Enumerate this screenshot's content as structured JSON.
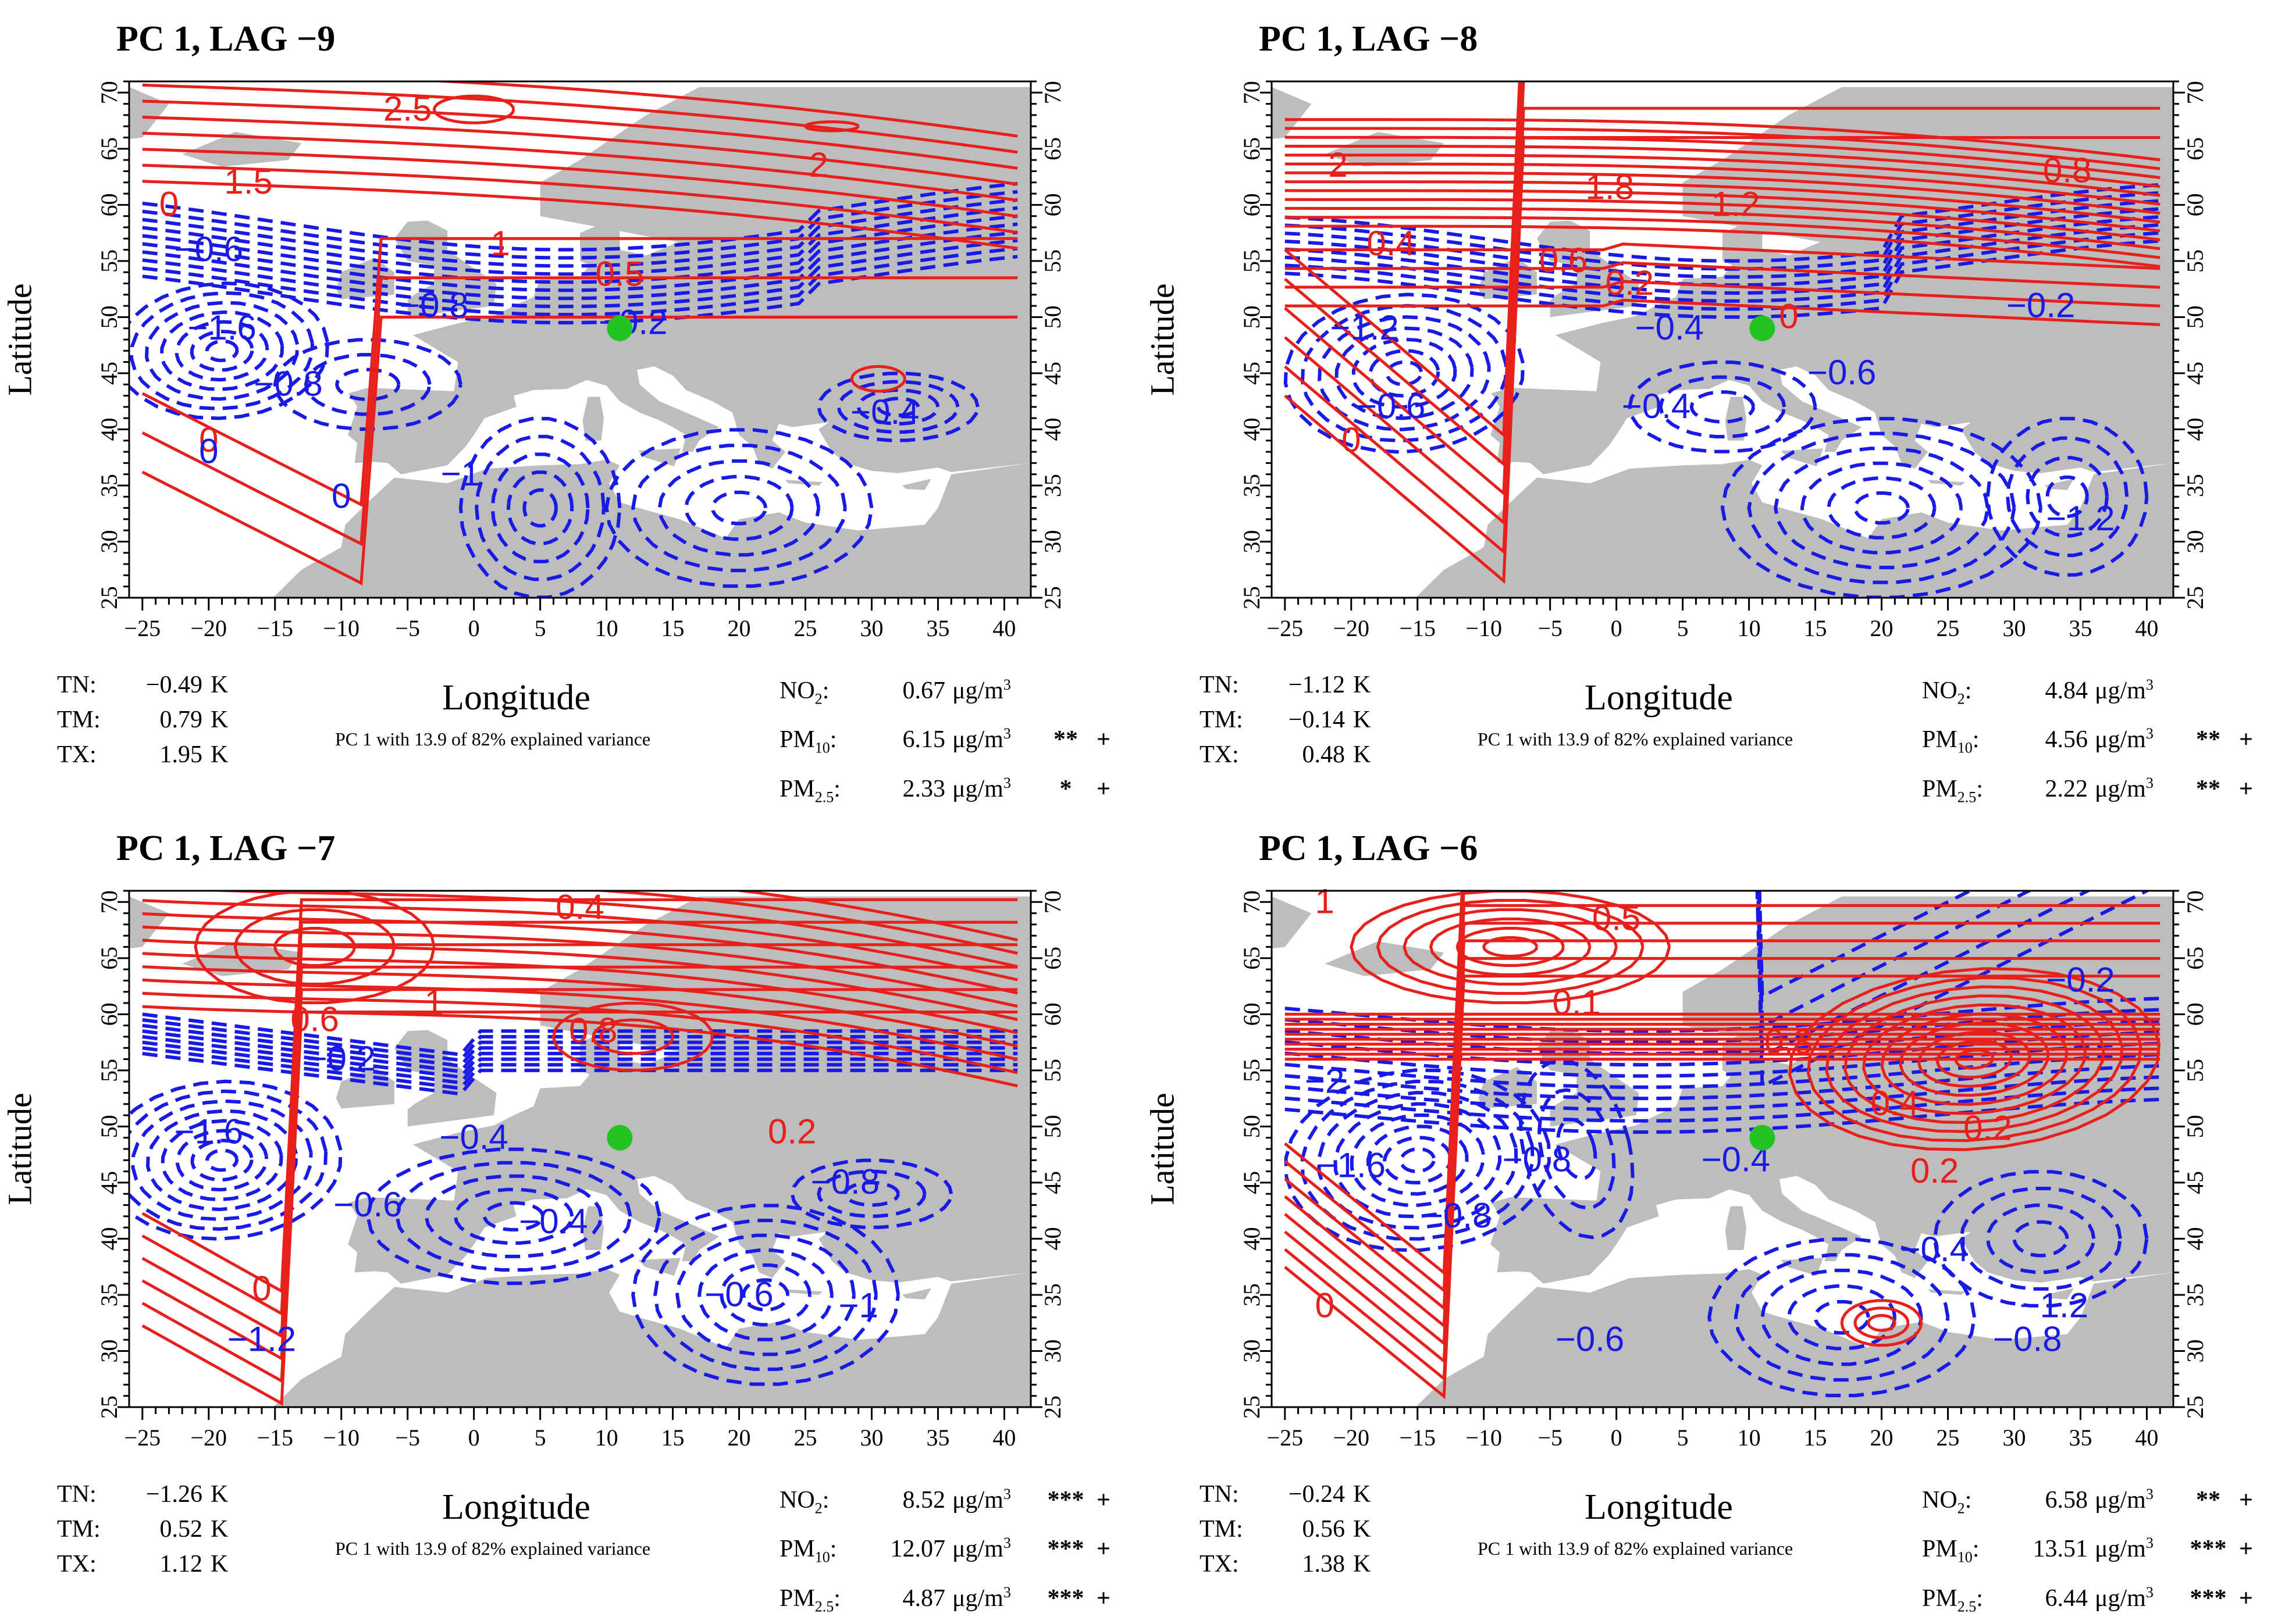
{
  "colors": {
    "positive": "#e8201c",
    "negative": "#1a1ae6",
    "land": "#bdbdbd",
    "sea": "#ffffff",
    "marker": "#22c322"
  },
  "x_axis_label": "Longitude",
  "y_axis_label": "Latitude",
  "subtitle": "PC 1 with 13.9 of 82% explained variance",
  "x_ticks": [
    "−25",
    "−20",
    "−15",
    "−10",
    "−5",
    "0",
    "5",
    "10",
    "15",
    "20",
    "25",
    "30",
    "35",
    "40"
  ],
  "y_ticks": [
    "25",
    "30",
    "35",
    "40",
    "45",
    "50",
    "55",
    "60",
    "65",
    "70"
  ],
  "unit_temp": "K",
  "unit_conc": "μg/m",
  "unit_conc_exp": "3",
  "temp_labels": [
    "TN:",
    "TM:",
    "TX:"
  ],
  "pollutants": [
    {
      "base": "NO",
      "sub": "2"
    },
    {
      "base": "PM",
      "sub": "10"
    },
    {
      "base": "PM",
      "sub": "2.5"
    }
  ],
  "chart_data": [
    {
      "type": "contour-map",
      "title": "PC 1, LAG −9",
      "xlim": [
        -25,
        40
      ],
      "ylim": [
        25,
        70
      ],
      "temps": [
        "−0.49",
        "0.79",
        "1.95"
      ],
      "conc": [
        "0.67",
        "6.15",
        "2.33"
      ],
      "sig": [
        "",
        "**",
        "*"
      ],
      "plus": [
        "",
        "+",
        "+"
      ],
      "pos_labels": [
        "2.5",
        "2",
        "1.5",
        "1",
        "0.5",
        "0",
        "0"
      ],
      "neg_labels": [
        "−0.6",
        "−1.6",
        "−0.8",
        "−0.8",
        "−0.2",
        "0",
        "−0.4",
        "−1",
        "0"
      ]
    },
    {
      "type": "contour-map",
      "title": "PC 1, LAG −8",
      "xlim": [
        -25,
        40
      ],
      "ylim": [
        25,
        70
      ],
      "temps": [
        "−1.12",
        "−0.14",
        "0.48"
      ],
      "conc": [
        "4.84",
        "4.56",
        "2.22"
      ],
      "sig": [
        "",
        "**",
        "**"
      ],
      "plus": [
        "",
        "+",
        "+"
      ],
      "pos_labels": [
        "2",
        "1.8",
        "1.2",
        "0.8",
        "0.4",
        "0.6",
        "0.2",
        "0",
        "0"
      ],
      "neg_labels": [
        "−1.2",
        "−0.6",
        "−0.4",
        "−0.4",
        "−0.6",
        "−0.2",
        "−1.2"
      ]
    },
    {
      "type": "contour-map",
      "title": "PC 1, LAG −7",
      "xlim": [
        -25,
        40
      ],
      "ylim": [
        25,
        70
      ],
      "temps": [
        "−1.26",
        "0.52",
        "1.12"
      ],
      "conc": [
        "8.52",
        "12.07",
        "4.87"
      ],
      "sig": [
        "***",
        "***",
        "***"
      ],
      "plus": [
        "+",
        "+",
        "+"
      ],
      "pos_labels": [
        "0.4",
        "0.8",
        "0.6",
        "1",
        "0.2",
        "0"
      ],
      "neg_labels": [
        "−1.6",
        "−0.2",
        "−0.4",
        "−0.6",
        "−0.4",
        "−0.8",
        "−0.6",
        "−1",
        "−1.2"
      ]
    },
    {
      "type": "contour-map",
      "title": "PC 1, LAG −6",
      "xlim": [
        -25,
        40
      ],
      "ylim": [
        25,
        70
      ],
      "temps": [
        "−0.24",
        "0.56",
        "1.38"
      ],
      "conc": [
        "6.58",
        "13.51",
        "6.44"
      ],
      "sig": [
        "**",
        "***",
        "***"
      ],
      "plus": [
        "+",
        "+",
        "+"
      ],
      "pos_labels": [
        "1",
        "0.5",
        "0.1",
        "0.3",
        "0.4",
        "0.2",
        "0.2",
        "0"
      ],
      "neg_labels": [
        "−2",
        "−1.6",
        "−0.8",
        "−0.8",
        "−0.4",
        "−0.4",
        "−0.6",
        "−1.2",
        "−0.2",
        "−0.8"
      ]
    }
  ]
}
